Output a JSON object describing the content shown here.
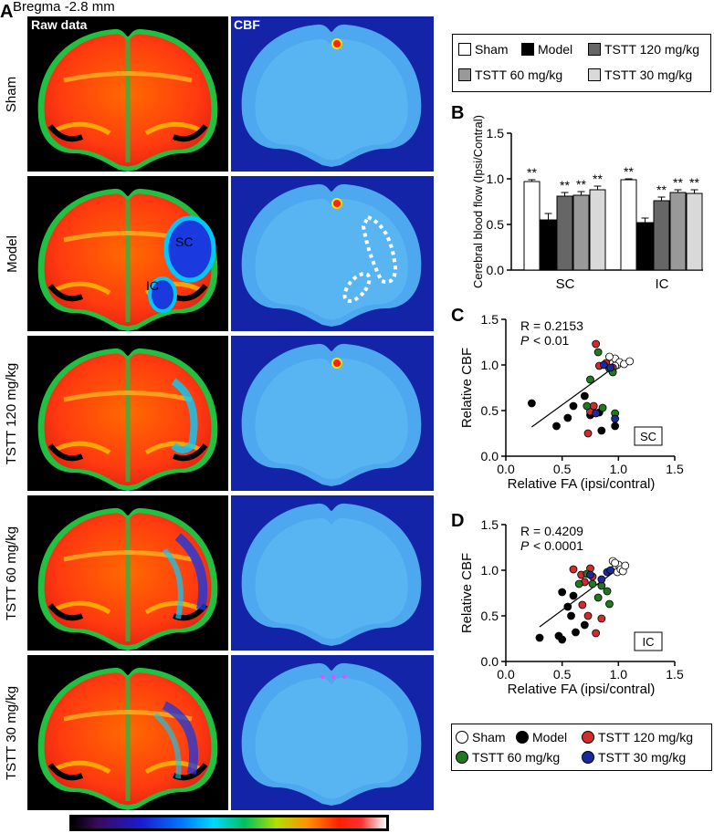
{
  "header": {
    "panel_a": "A",
    "bregma": "Bregma -2.8 mm"
  },
  "columns": {
    "raw": "Raw data",
    "cbf": "CBF"
  },
  "rows": [
    {
      "label": "Sham"
    },
    {
      "label": "Model"
    },
    {
      "label": "TSTT 120 mg/kg"
    },
    {
      "label": "TSTT 60 mg/kg"
    },
    {
      "label": "TSTT 30 mg/kg"
    }
  ],
  "model_annotations": {
    "sc": "SC",
    "ic": "IC"
  },
  "legend_top": [
    {
      "label": "Sham",
      "color": "#ffffff"
    },
    {
      "label": "Model",
      "color": "#000000"
    },
    {
      "label": "TSTT 120 mg/kg",
      "color": "#666666"
    },
    {
      "label": "TSTT 60 mg/kg",
      "color": "#999999"
    },
    {
      "label": "TSTT 30 mg/kg",
      "color": "#d9d9d9"
    }
  ],
  "legend_bottom": [
    {
      "label": "Sham",
      "color": "#ffffff"
    },
    {
      "label": "Model",
      "color": "#000000"
    },
    {
      "label": "TSTT 120 mg/kg",
      "color": "#d12b2b"
    },
    {
      "label": "TSTT 60 mg/kg",
      "color": "#1f7a1f"
    },
    {
      "label": "TSTT 30 mg/kg",
      "color": "#1a2a9c"
    }
  ],
  "chart_data": [
    {
      "panel": "B",
      "type": "bar",
      "categories": [
        "SC",
        "IC"
      ],
      "series": [
        {
          "name": "Sham",
          "values": [
            0.97,
            0.99
          ],
          "err": [
            0.02,
            0.01
          ],
          "sig": [
            "**",
            "**"
          ],
          "color": "#ffffff"
        },
        {
          "name": "Model",
          "values": [
            0.55,
            0.52
          ],
          "err": [
            0.07,
            0.05
          ],
          "sig": [
            "",
            ""
          ],
          "color": "#000000"
        },
        {
          "name": "TSTT 120 mg/kg",
          "values": [
            0.81,
            0.76
          ],
          "err": [
            0.04,
            0.04
          ],
          "sig": [
            "**",
            "**"
          ],
          "color": "#666666"
        },
        {
          "name": "TSTT 60 mg/kg",
          "values": [
            0.82,
            0.85
          ],
          "err": [
            0.04,
            0.03
          ],
          "sig": [
            "**",
            "**"
          ],
          "color": "#999999"
        },
        {
          "name": "TSTT 30 mg/kg",
          "values": [
            0.88,
            0.84
          ],
          "err": [
            0.04,
            0.04
          ],
          "sig": [
            "**",
            "**"
          ],
          "color": "#d9d9d9"
        }
      ],
      "ylabel": "Cerebral blood flow (Ipsi/Contral)",
      "ylim": [
        0,
        1.5
      ],
      "yticks": [
        "0.0",
        "0.5",
        "1.0",
        "1.5"
      ]
    },
    {
      "panel": "C",
      "type": "scatter",
      "stat_r": "R = 0.2153",
      "stat_p_label": "P",
      "stat_p_value": "< 0.01",
      "region_label": "SC",
      "xlabel": "Relative FA (ipsi/contral)",
      "ylabel": "Relative CBF",
      "xlim": [
        0,
        1.5
      ],
      "ylim": [
        0,
        1.5
      ],
      "xticks": [
        "0.0",
        "0.5",
        "1.0",
        "1.5"
      ],
      "yticks": [
        "0.0",
        "0.5",
        "1.0",
        "1.5"
      ],
      "fit_line": [
        [
          0.23,
          0.32
        ],
        [
          1.01,
          1.02
        ]
      ],
      "series": [
        {
          "name": "Sham",
          "color": "#ffffff",
          "points": [
            [
              0.93,
              1.05
            ],
            [
              0.95,
              1.02
            ],
            [
              0.97,
              1.07
            ],
            [
              0.99,
              1.0
            ],
            [
              1.01,
              1.03
            ],
            [
              1.05,
              1.01
            ],
            [
              1.1,
              1.04
            ],
            [
              0.97,
              0.99
            ],
            [
              0.92,
              1.09
            ]
          ]
        },
        {
          "name": "Model",
          "color": "#000000",
          "points": [
            [
              0.23,
              0.58
            ],
            [
              0.45,
              0.33
            ],
            [
              0.55,
              0.42
            ],
            [
              0.6,
              0.55
            ],
            [
              0.7,
              0.66
            ],
            [
              0.75,
              0.45
            ],
            [
              0.83,
              0.48
            ],
            [
              0.85,
              0.28
            ],
            [
              0.97,
              0.33
            ]
          ]
        },
        {
          "name": "TSTT 120 mg/kg",
          "color": "#d12b2b",
          "points": [
            [
              0.8,
              1.23
            ],
            [
              0.83,
              0.99
            ],
            [
              0.89,
              1.02
            ],
            [
              0.95,
              0.97
            ],
            [
              0.73,
              0.25
            ],
            [
              0.75,
              0.49
            ],
            [
              0.78,
              0.55
            ]
          ]
        },
        {
          "name": "TSTT 60 mg/kg",
          "color": "#1f7a1f",
          "points": [
            [
              0.75,
              0.84
            ],
            [
              0.82,
              1.14
            ],
            [
              0.86,
              0.53
            ],
            [
              0.92,
              0.96
            ],
            [
              0.95,
              0.92
            ],
            [
              0.97,
              0.47
            ],
            [
              0.72,
              0.55
            ]
          ]
        },
        {
          "name": "TSTT 30 mg/kg",
          "color": "#1a2a9c",
          "points": [
            [
              0.87,
              1.0
            ],
            [
              0.93,
              0.97
            ],
            [
              0.97,
              0.41
            ],
            [
              0.8,
              0.47
            ]
          ]
        }
      ]
    },
    {
      "panel": "D",
      "type": "scatter",
      "stat_r": "R = 0.4209",
      "stat_p_label": "P",
      "stat_p_value": "< 0.0001",
      "region_label": "IC",
      "xlabel": "Relative FA (ipsi/contral)",
      "ylabel": "Relative CBF",
      "xlim": [
        0,
        1.5
      ],
      "ylim": [
        0,
        1.5
      ],
      "xticks": [
        "0.0",
        "0.5",
        "1.0",
        "1.5"
      ],
      "yticks": [
        "0.0",
        "0.5",
        "1.0",
        "1.5"
      ],
      "fit_line": [
        [
          0.3,
          0.38
        ],
        [
          1.08,
          1.09
        ]
      ],
      "series": [
        {
          "name": "Sham",
          "color": "#ffffff",
          "points": [
            [
              0.95,
              1.1
            ],
            [
              0.97,
              1.02
            ],
            [
              0.99,
              0.98
            ],
            [
              1.0,
              1.06
            ],
            [
              1.02,
              1.01
            ],
            [
              1.04,
              0.99
            ],
            [
              1.06,
              1.05
            ],
            [
              0.97,
              1.08
            ]
          ]
        },
        {
          "name": "Model",
          "color": "#000000",
          "points": [
            [
              0.3,
              0.26
            ],
            [
              0.47,
              0.28
            ],
            [
              0.5,
              0.24
            ],
            [
              0.5,
              0.76
            ],
            [
              0.55,
              0.6
            ],
            [
              0.58,
              0.5
            ],
            [
              0.62,
              0.32
            ],
            [
              0.7,
              0.4
            ],
            [
              0.6,
              0.72
            ]
          ]
        },
        {
          "name": "TSTT 120 mg/kg",
          "color": "#d12b2b",
          "points": [
            [
              0.6,
              1.01
            ],
            [
              0.67,
              0.95
            ],
            [
              0.68,
              0.62
            ],
            [
              0.7,
              0.87
            ],
            [
              0.75,
              1.02
            ],
            [
              0.77,
              0.93
            ],
            [
              0.8,
              0.31
            ],
            [
              0.85,
              0.47
            ],
            [
              0.73,
              0.5
            ]
          ]
        },
        {
          "name": "TSTT 60 mg/kg",
          "color": "#1f7a1f",
          "points": [
            [
              0.65,
              0.85
            ],
            [
              0.72,
              0.96
            ],
            [
              0.77,
              0.85
            ],
            [
              0.85,
              0.83
            ],
            [
              0.9,
              0.77
            ],
            [
              0.92,
              0.63
            ],
            [
              0.82,
              0.7
            ]
          ]
        },
        {
          "name": "TSTT 30 mg/kg",
          "color": "#1a2a9c",
          "points": [
            [
              0.75,
              0.95
            ],
            [
              0.85,
              0.9
            ],
            [
              0.9,
              0.98
            ],
            [
              0.93,
              1.0
            ]
          ]
        }
      ]
    }
  ]
}
